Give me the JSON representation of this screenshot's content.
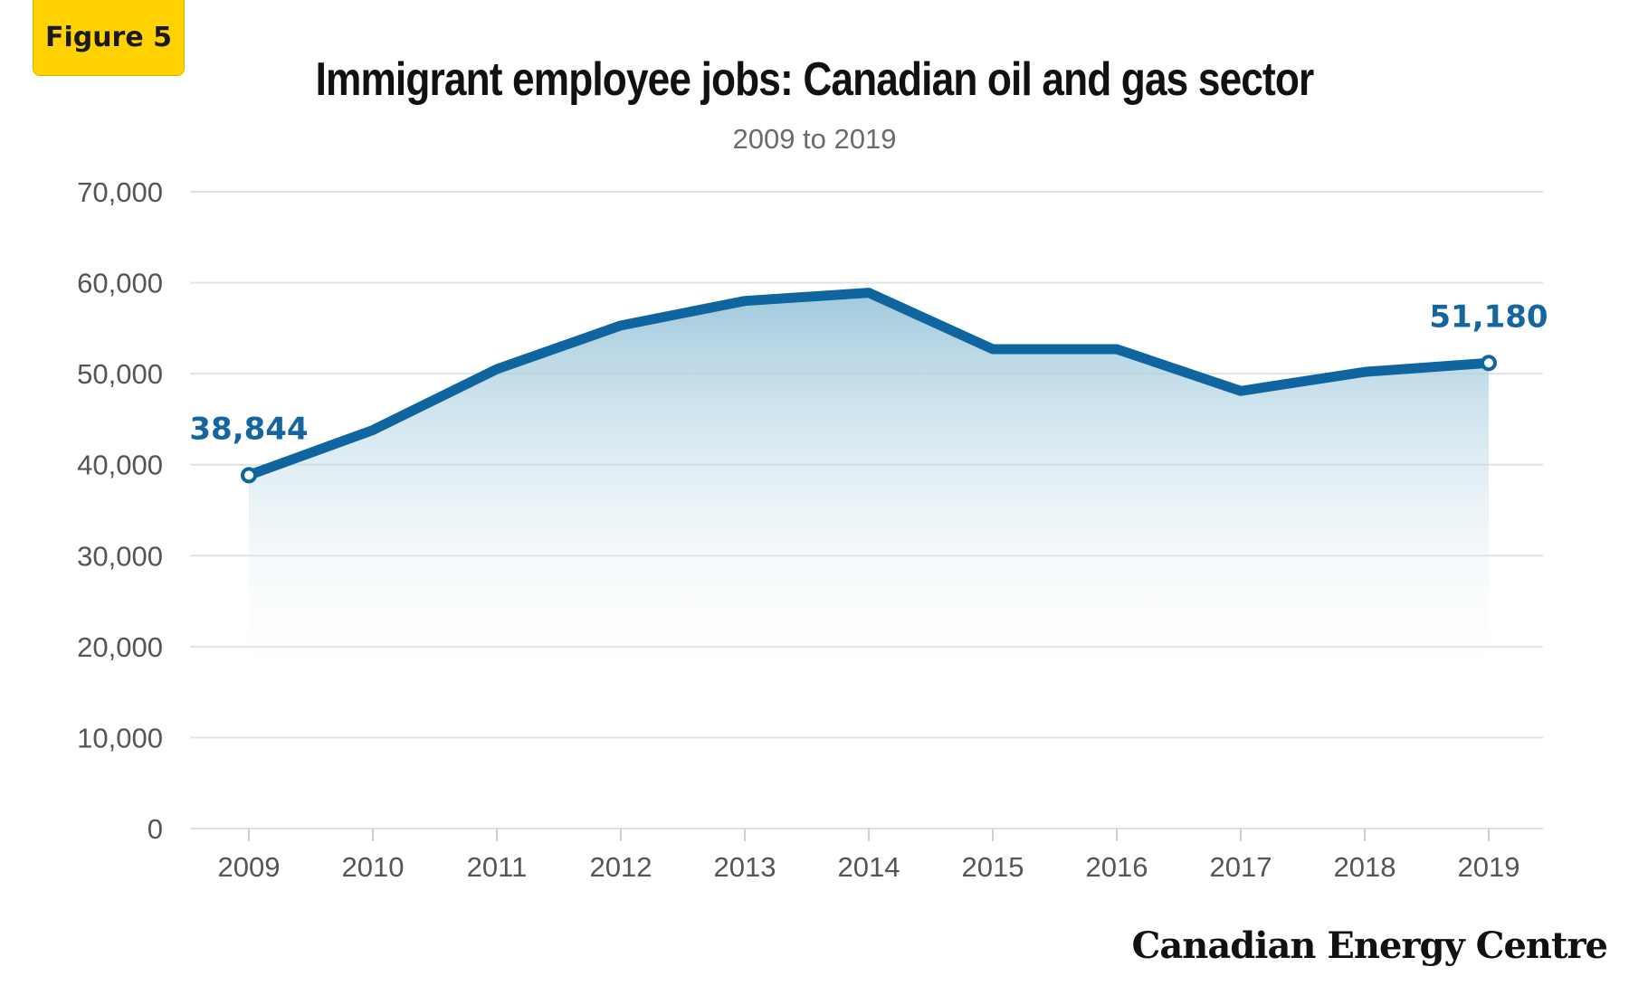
{
  "badge": "Figure 5",
  "logo": "Canadian Energy Centre",
  "colors": {
    "line": "#0E65A0",
    "area_top": "#8fbfd6",
    "grid": "#e3e3e3",
    "label": "#1566a0",
    "badge": "#FFD200"
  },
  "chart_data": {
    "type": "area",
    "title": "Immigrant employee jobs: Canadian oil and gas sector",
    "subtitle": "2009 to 2019",
    "xlabel": "",
    "ylabel": "",
    "x": [
      "2009",
      "2010",
      "2011",
      "2012",
      "2013",
      "2014",
      "2015",
      "2016",
      "2017",
      "2018",
      "2019"
    ],
    "series": [
      {
        "values": [
          38844,
          43800,
          50500,
          55300,
          58000,
          58900,
          52700,
          52700,
          48100,
          50200,
          51180
        ]
      }
    ],
    "ylim": [
      0,
      70000
    ],
    "yticks": [
      0,
      10000,
      20000,
      30000,
      40000,
      50000,
      60000,
      70000
    ],
    "ytick_labels": [
      "0",
      "10,000",
      "20,000",
      "30,000",
      "40,000",
      "50,000",
      "60,000",
      "70,000"
    ],
    "annotations": [
      {
        "index": 0,
        "text": "38,844"
      },
      {
        "index": 10,
        "text": "51,180"
      }
    ],
    "grid": true,
    "legend": "none"
  }
}
